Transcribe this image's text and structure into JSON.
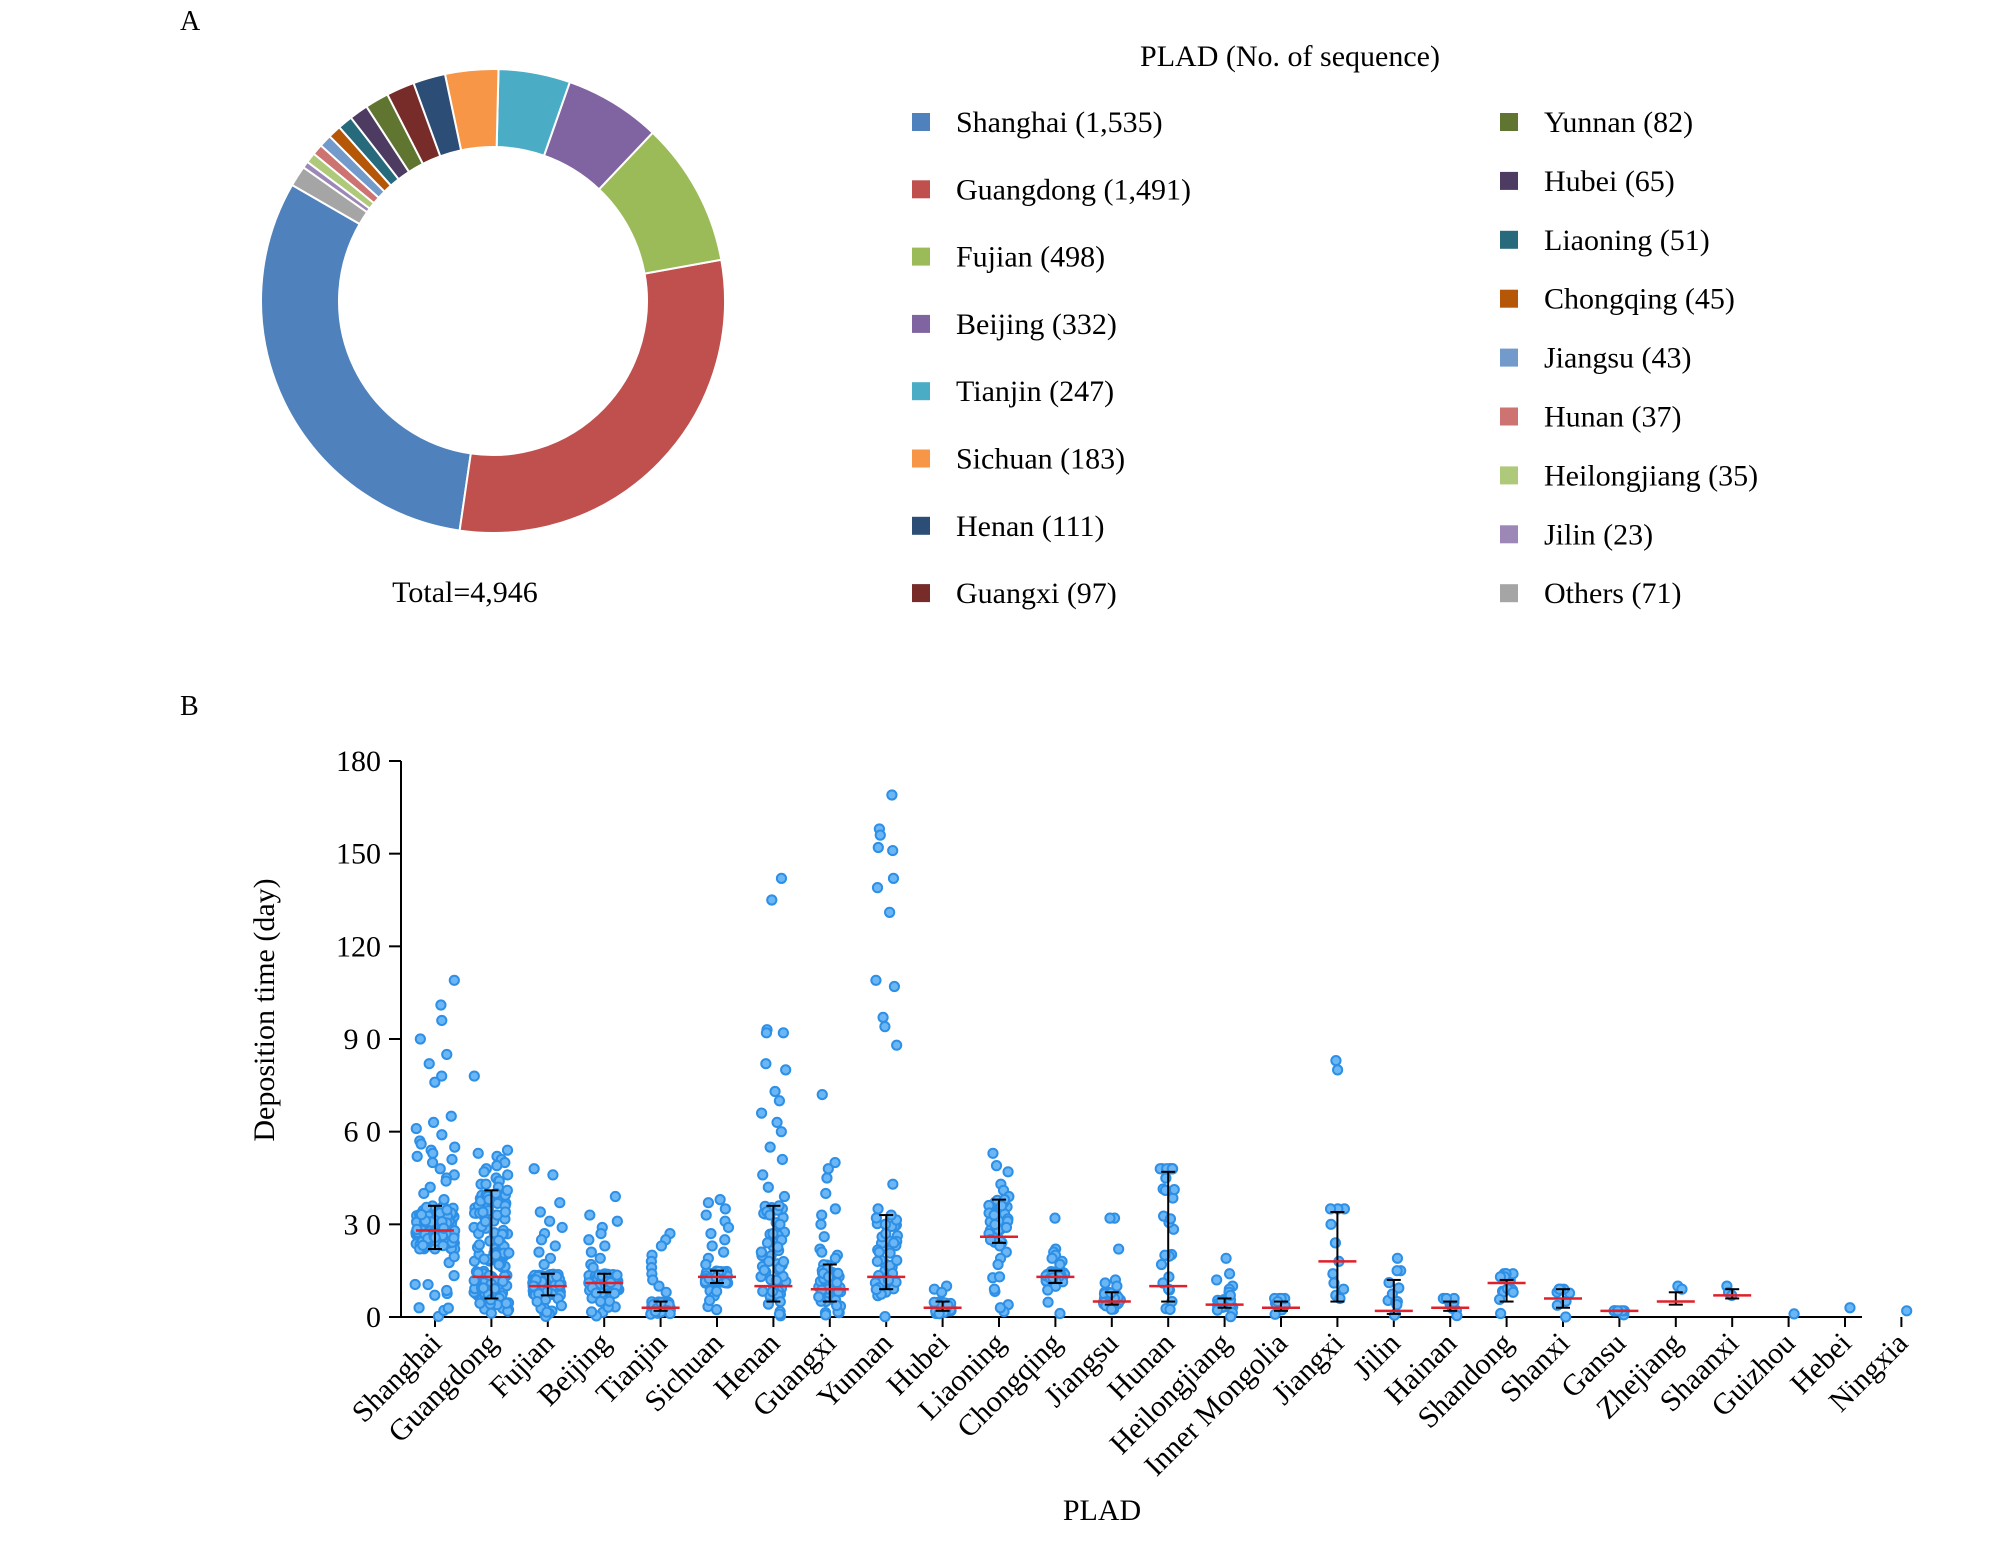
{
  "panels": {
    "a": "A",
    "b": "B"
  },
  "chart_data": [
    {
      "type": "pie",
      "variant": "donut",
      "legend_title": "PLAD (No. of sequence)",
      "total_label": "Total=4,946",
      "labels": [
        "Shanghai (1,535)",
        "Guangdong (1,491)",
        "Fujian (498)",
        "Beijing (332)",
        "Tianjin (247)",
        "Sichuan (183)",
        "Henan (111)",
        "Guangxi (97)",
        "Yunnan (82)",
        "Hubei (65)",
        "Liaoning (51)",
        "Chongqing (45)",
        "Jiangsu (43)",
        "Hunan (37)",
        "Heilongjiang (35)",
        "Jilin (23)",
        "Others (71)"
      ],
      "values": [
        1535,
        1491,
        498,
        332,
        247,
        183,
        111,
        97,
        82,
        65,
        51,
        45,
        43,
        37,
        35,
        23,
        71
      ],
      "colors": [
        "#4f81bd",
        "#c0504d",
        "#9bbb59",
        "#8064a2",
        "#4bacc6",
        "#f79646",
        "#2c4d75",
        "#772c2a",
        "#5f7530",
        "#4d3b62",
        "#276a7c",
        "#b65708",
        "#729aca",
        "#cd7371",
        "#afc97a",
        "#9d87b6",
        "#a5a5a5"
      ],
      "legend_placement": "right, two columns"
    },
    {
      "type": "scatter",
      "variant": "dot plot with median and interquartile range",
      "xlabel": "PLAD",
      "ylabel": "Deposition time (day)",
      "ylim": [
        0,
        180
      ],
      "yticks": [
        "0",
        "3 0",
        "6 0",
        "9 0",
        "120",
        "150",
        "180"
      ],
      "ytick_values": [
        0,
        30,
        60,
        90,
        120,
        150,
        180
      ],
      "categories": [
        "Shanghai",
        "Guangdong",
        "Fujian",
        "Beijing",
        "Tianjin",
        "Sichuan",
        "Henan",
        "Guangxi",
        "Yunnan",
        "Hubei",
        "Liaoning",
        "Chongqing",
        "Jiangsu",
        "Hunan",
        "Heilongjiang",
        "Inner Mongolia",
        "Jiangxi",
        "Jilin",
        "Hainan",
        "Shandong",
        "Shanxi",
        "Gansu",
        "Zhejiang",
        "Shaanxi",
        "Guizhou",
        "Hebei",
        "Ningxia"
      ],
      "median": [
        28,
        13,
        10,
        11,
        3,
        13,
        10,
        9,
        13,
        3,
        26,
        13,
        5,
        10,
        4,
        3,
        18,
        2,
        3,
        11,
        6,
        2,
        5,
        7,
        null,
        null,
        null
      ],
      "q1": [
        22,
        6,
        7,
        8,
        2,
        11,
        5,
        5,
        9,
        2,
        24,
        11,
        4,
        5,
        3,
        2,
        5,
        1,
        2,
        5,
        3,
        2,
        4,
        6,
        null,
        null,
        null
      ],
      "q3": [
        36,
        41,
        14,
        14,
        5,
        15,
        36,
        17,
        33,
        5,
        38,
        15,
        8,
        47,
        6,
        5,
        34,
        12,
        5,
        12,
        9,
        2,
        8,
        9,
        null,
        null,
        null
      ],
      "high_points": [
        [
          109,
          101,
          96,
          90,
          85,
          82,
          78,
          76,
          65,
          63,
          61,
          59,
          57,
          56,
          55,
          54,
          53,
          52,
          51,
          50,
          48,
          46,
          45,
          44,
          42,
          40,
          38
        ],
        [
          78,
          54,
          53,
          52,
          51,
          50,
          49,
          48,
          47,
          46,
          45,
          44,
          44,
          43,
          43,
          42,
          41,
          40,
          39,
          38,
          36,
          34
        ],
        [
          48,
          46,
          37,
          34,
          31,
          29,
          27,
          25,
          23,
          21,
          19,
          17
        ],
        [
          39,
          33,
          31,
          29,
          27,
          25,
          23,
          21,
          19,
          17,
          16
        ],
        [
          27,
          25,
          23,
          20,
          18,
          16,
          14,
          12,
          10,
          8
        ],
        [
          38,
          37,
          35,
          33,
          31,
          29,
          27,
          25,
          23,
          21,
          19,
          17
        ],
        [
          142,
          135,
          93,
          92,
          92,
          82,
          80,
          73,
          70,
          66,
          63,
          60,
          55,
          51,
          46,
          42,
          39,
          36,
          33,
          30,
          27,
          24,
          21,
          18
        ],
        [
          72,
          50,
          48,
          45,
          40,
          35,
          33,
          30,
          26,
          22,
          21,
          20,
          19
        ],
        [
          169,
          158,
          156,
          152,
          151,
          142,
          139,
          131,
          109,
          107,
          97,
          94,
          88,
          43,
          35,
          33,
          30,
          27,
          24,
          21,
          18
        ],
        [
          10,
          9,
          8
        ],
        [
          53,
          49,
          47,
          43,
          41,
          39,
          38,
          36,
          33,
          31,
          29,
          27,
          25,
          23,
          21,
          19,
          17,
          13,
          9,
          3
        ],
        [
          32,
          22,
          21,
          20,
          19,
          18,
          17
        ],
        [
          32,
          32,
          22,
          12,
          11,
          10
        ],
        [
          48,
          48,
          48,
          48,
          48,
          48,
          48,
          41,
          20,
          17,
          13,
          11,
          9
        ],
        [
          19,
          14,
          12,
          10,
          9,
          8,
          7
        ],
        [
          6,
          6,
          6,
          6,
          5
        ],
        [
          83,
          80,
          35,
          35,
          35,
          30,
          24,
          18,
          14,
          11,
          9,
          7,
          6
        ],
        [
          19,
          15,
          15,
          5,
          4
        ],
        [
          6,
          6,
          6,
          6
        ],
        [
          14,
          14,
          14,
          14,
          13,
          13,
          8
        ],
        [
          9,
          9,
          9,
          9
        ],
        [],
        [
          10,
          9
        ],
        [
          10,
          8,
          7
        ],
        [
          1
        ],
        [
          3
        ],
        [
          2
        ]
      ],
      "bulk_points": [
        150,
        110,
        90,
        95,
        40,
        55,
        50,
        45,
        40,
        30,
        30,
        35,
        25,
        12,
        20,
        8,
        0,
        6,
        6,
        6,
        4,
        4,
        0,
        0,
        0,
        0,
        0
      ],
      "point_color": "#2d8fe6",
      "median_color": "#e0202a"
    }
  ]
}
